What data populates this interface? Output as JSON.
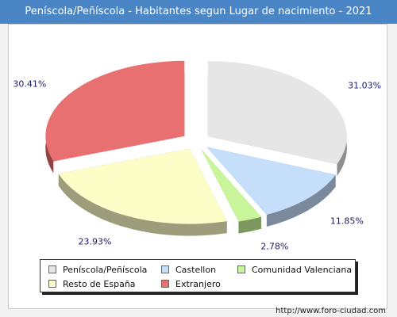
{
  "title": "Peníscola/Peñíscola - Habitantes segun Lugar de nacimiento - 2021",
  "footer": "http://www.foro-ciudad.com",
  "chart_data": {
    "type": "pie",
    "title": "Peníscola/Peñíscola - Habitantes segun Lugar de nacimiento - 2021",
    "categories": [
      "Peníscola/Peñíscola",
      "Castellon",
      "Comunidad Valenciana",
      "Resto de España",
      "Extranjero"
    ],
    "values": [
      31.03,
      11.85,
      2.78,
      23.93,
      30.41
    ],
    "labels": [
      "31.03%",
      "11.85%",
      "2.78%",
      "23.93%",
      "30.41%"
    ],
    "colors": [
      "#e6e6e6",
      "#c5dffb",
      "#c8f59a",
      "#fdfdc8",
      "#e87070"
    ],
    "legend_position": "bottom",
    "exploded": true,
    "3d": true
  },
  "legend": [
    {
      "label": "Peníscola/Peñíscola",
      "color": "#e6e6e6"
    },
    {
      "label": "Castellon",
      "color": "#c5dffb"
    },
    {
      "label": "Comunidad Valenciana",
      "color": "#c8f59a"
    },
    {
      "label": "Resto de España",
      "color": "#fdfdc8"
    },
    {
      "label": "Extranjero",
      "color": "#e87070"
    }
  ]
}
